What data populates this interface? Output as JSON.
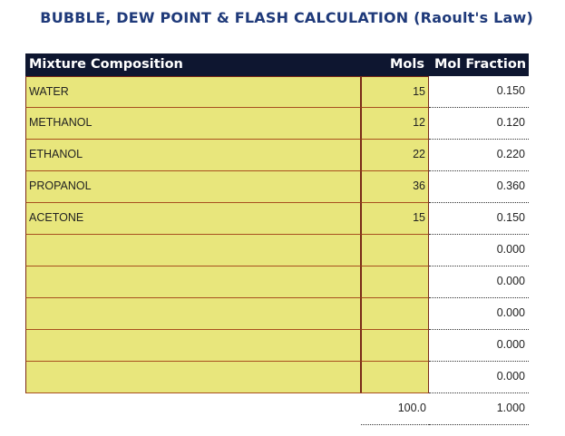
{
  "title": "BUBBLE, DEW POINT & FLASH CALCULATION (Raoult's Law)",
  "table": {
    "headers": {
      "composition": "Mixture Composition",
      "mols": "Mols",
      "fraction": "Mol Fraction"
    },
    "rows": [
      {
        "name": "WATER",
        "mols": "15",
        "fraction": "0.150"
      },
      {
        "name": "METHANOL",
        "mols": "12",
        "fraction": "0.120"
      },
      {
        "name": "ETHANOL",
        "mols": "22",
        "fraction": "0.220"
      },
      {
        "name": "PROPANOL",
        "mols": "36",
        "fraction": "0.360"
      },
      {
        "name": "ACETONE",
        "mols": "15",
        "fraction": "0.150"
      },
      {
        "name": "",
        "mols": "",
        "fraction": "0.000"
      },
      {
        "name": "",
        "mols": "",
        "fraction": "0.000"
      },
      {
        "name": "",
        "mols": "",
        "fraction": "0.000"
      },
      {
        "name": "",
        "mols": "",
        "fraction": "0.000"
      },
      {
        "name": "",
        "mols": "",
        "fraction": "0.000"
      }
    ],
    "totals": {
      "mols": "100.0",
      "fraction": "1.000"
    }
  },
  "colors": {
    "title": "#1f3a7a",
    "header_bg": "#0e1630",
    "input_cell": "#e8e67c",
    "cell_border": "#7a2a18"
  }
}
